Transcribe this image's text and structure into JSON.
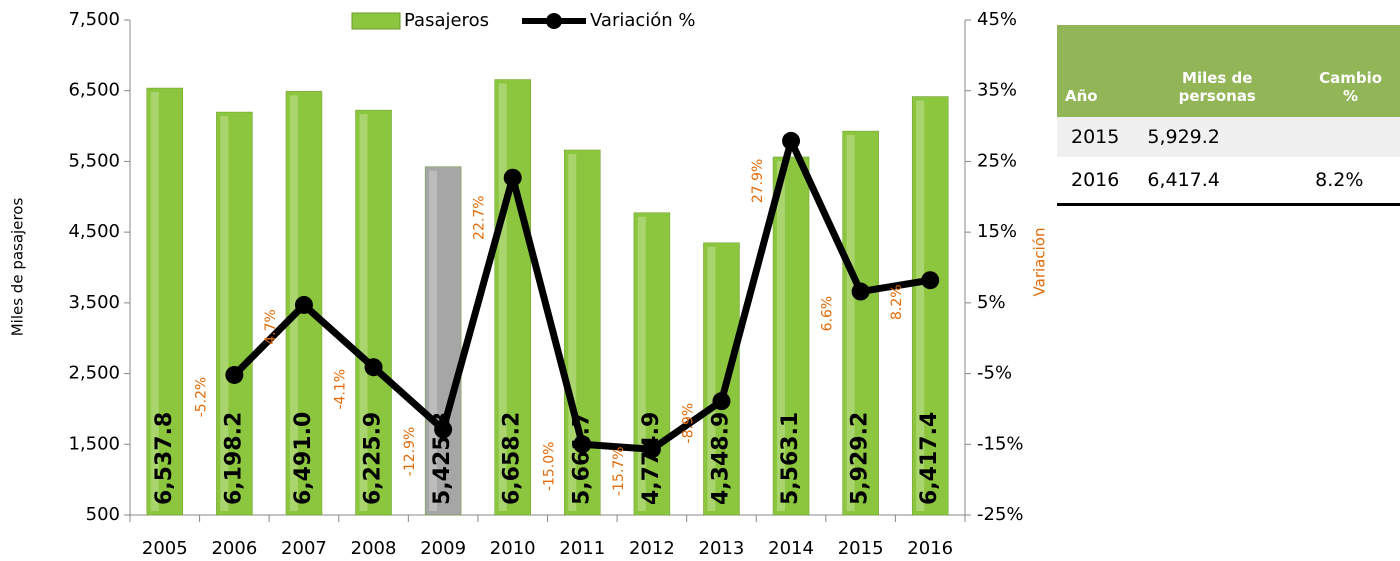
{
  "chart_data": {
    "type": "bar-line",
    "categories": [
      "2005",
      "2006",
      "2007",
      "2008",
      "2009",
      "2010",
      "2011",
      "2012",
      "2013",
      "2014",
      "2015",
      "2016"
    ],
    "series": [
      {
        "name": "Pasajeros",
        "type": "bar",
        "color": "#8cc63e",
        "colors": [
          "#8cc63e",
          "#8cc63e",
          "#8cc63e",
          "#8cc63e",
          "#a6a6a6",
          "#8cc63e",
          "#8cc63e",
          "#8cc63e",
          "#8cc63e",
          "#8cc63e",
          "#8cc63e",
          "#8cc63e"
        ],
        "values": [
          6537.8,
          6198.2,
          6491.0,
          6225.9,
          5425.3,
          6658.2,
          5661.7,
          4774.9,
          4348.9,
          5563.1,
          5929.2,
          6417.4
        ],
        "value_labels": [
          "6,537.8",
          "6,198.2",
          "6,491.0",
          "6,225.9",
          "5,425.3",
          "6,658.2",
          "5,661.7",
          "4,774.9",
          "4,348.9",
          "5,563.1",
          "5,929.2",
          "6,417.4"
        ]
      },
      {
        "name": "Variación %",
        "type": "line",
        "axis": "y2",
        "color": "#000000",
        "label_color": "#e36c0a",
        "values": [
          null,
          -5.2,
          4.7,
          -4.1,
          -12.9,
          22.7,
          -15.0,
          -15.7,
          -8.9,
          27.9,
          6.6,
          8.2
        ],
        "value_labels": [
          null,
          "-5.2%",
          "4.7%",
          "-4.1%",
          "-12.9%",
          "22.7%",
          "-15.0%",
          "-15.7%",
          "-8.9%",
          "27.9%",
          "6.6%",
          "8.2%"
        ]
      }
    ],
    "ylabel": "Miles de pasajeros",
    "y2label": "Variación",
    "ylim": [
      500,
      7500
    ],
    "yticks": [
      500,
      {
        "value": 1500,
        "label": "1,500"
      },
      {
        "value": 2500,
        "label": "2,500"
      },
      {
        "value": 3500,
        "label": "3,500"
      },
      {
        "value": 4500,
        "label": "4,500"
      },
      {
        "value": 5500,
        "label": "5,500"
      },
      {
        "value": 6500,
        "label": "6,500"
      },
      {
        "value": 7500,
        "label": "7,500"
      }
    ],
    "y2lim": [
      -25,
      45
    ],
    "y2ticks": [
      {
        "value": -25,
        "label": "-25%"
      },
      {
        "value": -15,
        "label": "-15%"
      },
      {
        "value": -5,
        "label": "-5%"
      },
      {
        "value": 5,
        "label": "5%"
      },
      {
        "value": 15,
        "label": "15%"
      },
      {
        "value": 25,
        "label": "25%"
      },
      {
        "value": 35,
        "label": "35%"
      },
      {
        "value": 45,
        "label": "45%"
      }
    ],
    "legend": "top"
  },
  "table": {
    "header": [
      "Año",
      "Miles de personas",
      "Cambio %"
    ],
    "rows": [
      [
        "2015",
        "5,929.2"
      ],
      [
        "2016",
        "6,417.4",
        "8.2%"
      ]
    ]
  }
}
